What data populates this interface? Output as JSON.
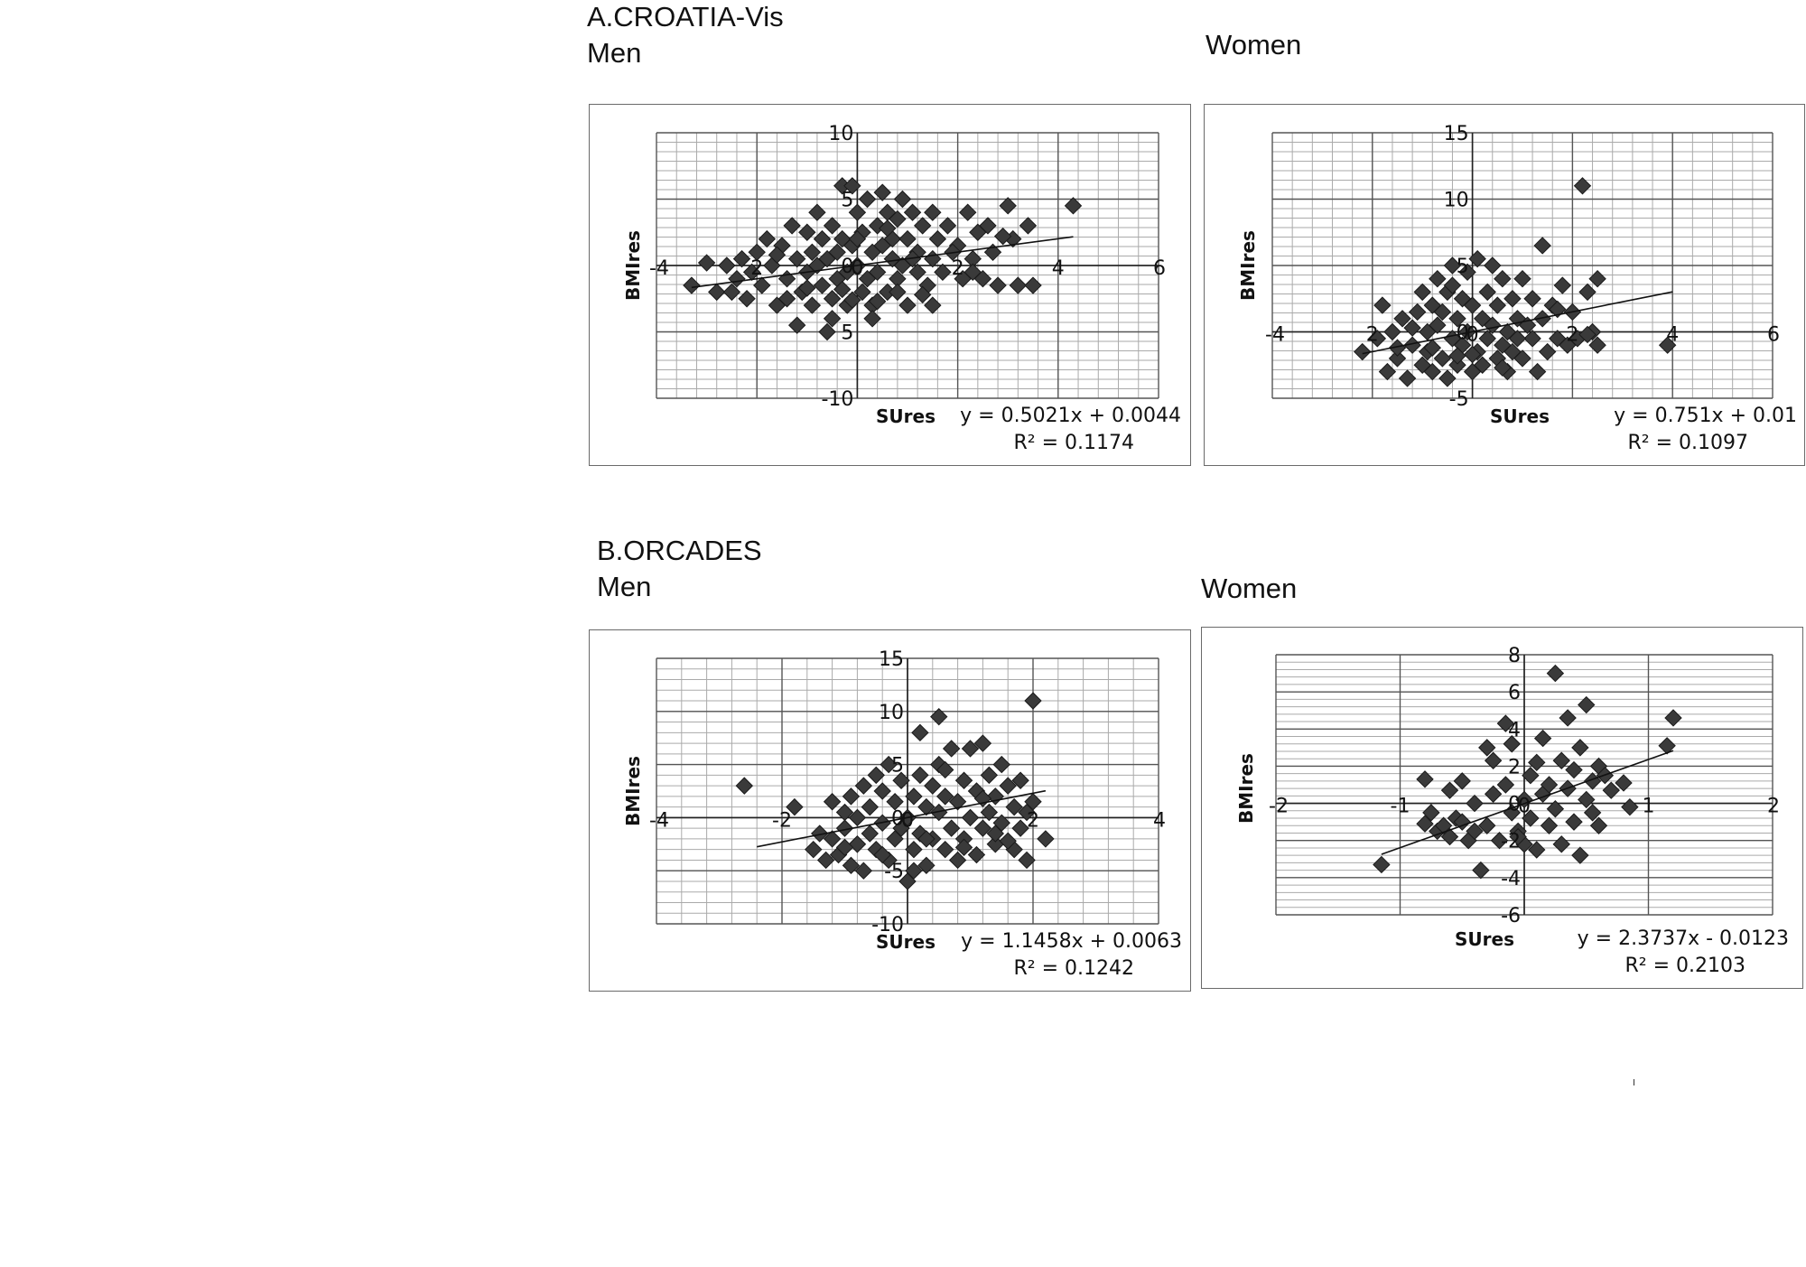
{
  "headings": {
    "a_title": "A.CROATIA-Vis",
    "a_men": "Men",
    "a_women": "Women",
    "b_title": "B.ORCADES",
    "b_men": "Men",
    "b_women": "Women"
  },
  "chart_data": [
    {
      "type": "scatter",
      "panel": "A.CROATIA-Vis Men",
      "xlabel": "SUres",
      "ylabel": "BMIres",
      "xlim": [
        -4,
        6
      ],
      "ylim": [
        -10,
        10
      ],
      "x_ticks": [
        "-4",
        "2",
        "0",
        "2",
        "4",
        "6"
      ],
      "y_ticks": [
        "10",
        "5",
        "0",
        "5",
        "-10"
      ],
      "equation": "y = 0.5021x + 0.0044",
      "r_squared": "R² = 0.1174",
      "trendline": {
        "slope": 0.5021,
        "intercept": 0.0044,
        "x_range": [
          -3.3,
          4.3
        ]
      },
      "points": [
        [
          -3.3,
          -1.5
        ],
        [
          -3.0,
          0.2
        ],
        [
          -2.8,
          -2
        ],
        [
          -2.6,
          0
        ],
        [
          -2.4,
          -1
        ],
        [
          -2.3,
          0.5
        ],
        [
          -2.2,
          -2.5
        ],
        [
          -2.1,
          -0.5
        ],
        [
          -2.0,
          1
        ],
        [
          -1.9,
          -1.5
        ],
        [
          -1.8,
          2
        ],
        [
          -1.7,
          0
        ],
        [
          -1.6,
          -3
        ],
        [
          -1.5,
          1.5
        ],
        [
          -1.4,
          -1
        ],
        [
          -1.3,
          3
        ],
        [
          -1.2,
          0.5
        ],
        [
          -1.2,
          -4.5
        ],
        [
          -1.1,
          -2
        ],
        [
          -1.0,
          2.5
        ],
        [
          -1.0,
          -0.5
        ],
        [
          -0.9,
          1
        ],
        [
          -0.9,
          -3
        ],
        [
          -0.8,
          4
        ],
        [
          -0.8,
          0
        ],
        [
          -0.7,
          -1.5
        ],
        [
          -0.7,
          2
        ],
        [
          -0.6,
          -5
        ],
        [
          -0.6,
          0.5
        ],
        [
          -0.5,
          -2.5
        ],
        [
          -0.5,
          3
        ],
        [
          -0.4,
          1
        ],
        [
          -0.4,
          -1
        ],
        [
          -0.3,
          6
        ],
        [
          -0.3,
          2
        ],
        [
          -0.2,
          -0.5
        ],
        [
          -0.2,
          -3
        ],
        [
          -0.1,
          6
        ],
        [
          -0.1,
          1.5
        ],
        [
          0.0,
          0
        ],
        [
          0.0,
          4
        ],
        [
          0.1,
          -2
        ],
        [
          0.1,
          2.5
        ],
        [
          0.2,
          -1
        ],
        [
          0.2,
          5
        ],
        [
          0.3,
          1
        ],
        [
          0.3,
          -3
        ],
        [
          0.4,
          3
        ],
        [
          0.4,
          -0.5
        ],
        [
          0.5,
          5.5
        ],
        [
          0.5,
          1.5
        ],
        [
          0.6,
          -2
        ],
        [
          0.6,
          4
        ],
        [
          0.7,
          0.5
        ],
        [
          0.7,
          2
        ],
        [
          0.8,
          -1
        ],
        [
          0.8,
          3.5
        ],
        [
          0.9,
          5
        ],
        [
          0.9,
          0
        ],
        [
          1.0,
          -3
        ],
        [
          1.0,
          2
        ],
        [
          1.1,
          4
        ],
        [
          1.2,
          -0.5
        ],
        [
          1.2,
          1
        ],
        [
          1.3,
          3
        ],
        [
          1.4,
          -1.5
        ],
        [
          1.5,
          4
        ],
        [
          1.5,
          0.5
        ],
        [
          1.6,
          2
        ],
        [
          1.7,
          -0.5
        ],
        [
          1.8,
          3
        ],
        [
          2.0,
          1.5
        ],
        [
          2.1,
          -1
        ],
        [
          2.2,
          4
        ],
        [
          2.3,
          0.5
        ],
        [
          2.4,
          2.5
        ],
        [
          2.5,
          -1
        ],
        [
          2.6,
          3
        ],
        [
          2.7,
          1
        ],
        [
          2.8,
          -1.5
        ],
        [
          3.0,
          4.5
        ],
        [
          3.1,
          2
        ],
        [
          3.2,
          -1.5
        ],
        [
          3.4,
          3
        ],
        [
          3.5,
          -1.5
        ],
        [
          4.3,
          4.5
        ],
        [
          -0.5,
          -4
        ],
        [
          0.3,
          -4
        ],
        [
          1.5,
          -3
        ],
        [
          -1.4,
          -2.5
        ],
        [
          0.8,
          -2
        ],
        [
          2.3,
          -0.5
        ],
        [
          -2.5,
          -2
        ],
        [
          1.9,
          1
        ],
        [
          0.0,
          2
        ],
        [
          -0.3,
          -1.8
        ],
        [
          1.1,
          0.5
        ],
        [
          0.6,
          2.8
        ],
        [
          -1.6,
          0.8
        ],
        [
          2.9,
          2.2
        ],
        [
          0.4,
          -2.7
        ],
        [
          1.3,
          -2.2
        ],
        [
          -0.1,
          -2.6
        ],
        [
          -1.0,
          -1.7
        ]
      ]
    },
    {
      "type": "scatter",
      "panel": "A.CROATIA-Vis Women",
      "xlabel": "SUres",
      "ylabel": "BMIres",
      "xlim": [
        -4,
        6
      ],
      "ylim": [
        -5,
        15
      ],
      "x_ticks": [
        "-4",
        "2",
        "0",
        "2",
        "4",
        "6"
      ],
      "y_ticks": [
        "15",
        "10",
        "5",
        "0",
        "-5"
      ],
      "equation": "y = 0.751x + 0.01",
      "r_squared": "R² = 0.1097",
      "trendline": {
        "slope": 0.751,
        "intercept": 0.01,
        "x_range": [
          -2.2,
          4
        ]
      },
      "points": [
        [
          -2.2,
          -1.5
        ],
        [
          -1.9,
          -0.5
        ],
        [
          -1.8,
          2
        ],
        [
          -1.7,
          -3
        ],
        [
          -1.6,
          0
        ],
        [
          -1.5,
          -2
        ],
        [
          -1.4,
          1
        ],
        [
          -1.3,
          -3.5
        ],
        [
          -1.2,
          -1
        ],
        [
          -1.1,
          1.5
        ],
        [
          -1.0,
          -2.5
        ],
        [
          -1.0,
          3
        ],
        [
          -0.9,
          0
        ],
        [
          -0.9,
          -1.5
        ],
        [
          -0.8,
          2
        ],
        [
          -0.8,
          -3
        ],
        [
          -0.7,
          4
        ],
        [
          -0.7,
          0.5
        ],
        [
          -0.6,
          -2
        ],
        [
          -0.6,
          1.5
        ],
        [
          -0.5,
          -3.5
        ],
        [
          -0.5,
          3
        ],
        [
          -0.4,
          -0.5
        ],
        [
          -0.4,
          5
        ],
        [
          -0.3,
          1
        ],
        [
          -0.3,
          -2.5
        ],
        [
          -0.2,
          2.5
        ],
        [
          -0.2,
          -1
        ],
        [
          -0.1,
          4.5
        ],
        [
          -0.1,
          0
        ],
        [
          0.0,
          -3
        ],
        [
          0.0,
          2
        ],
        [
          0.1,
          -1.5
        ],
        [
          0.1,
          5.5
        ],
        [
          0.2,
          1
        ],
        [
          0.2,
          -2.5
        ],
        [
          0.3,
          3
        ],
        [
          0.3,
          -0.5
        ],
        [
          0.4,
          5
        ],
        [
          0.4,
          0.5
        ],
        [
          0.5,
          -2
        ],
        [
          0.5,
          2
        ],
        [
          0.6,
          -1
        ],
        [
          0.6,
          4
        ],
        [
          0.7,
          0
        ],
        [
          0.7,
          -3
        ],
        [
          0.8,
          2.5
        ],
        [
          0.8,
          -1.5
        ],
        [
          0.9,
          1
        ],
        [
          1.0,
          4
        ],
        [
          1.0,
          -2
        ],
        [
          1.1,
          0.5
        ],
        [
          1.2,
          -0.5
        ],
        [
          1.2,
          2.5
        ],
        [
          1.3,
          -3
        ],
        [
          1.4,
          1
        ],
        [
          1.4,
          6.5
        ],
        [
          1.5,
          -1.5
        ],
        [
          1.6,
          2
        ],
        [
          1.7,
          -0.5
        ],
        [
          1.8,
          3.5
        ],
        [
          1.9,
          -1
        ],
        [
          2.0,
          1.5
        ],
        [
          2.1,
          -0.5
        ],
        [
          2.2,
          11
        ],
        [
          2.3,
          3
        ],
        [
          2.4,
          0
        ],
        [
          2.5,
          4
        ],
        [
          2.5,
          -1
        ],
        [
          3.9,
          -1
        ],
        [
          -1.5,
          -1.2
        ],
        [
          -0.8,
          -1.2
        ],
        [
          0.0,
          -1.7
        ],
        [
          0.9,
          -0.5
        ],
        [
          -0.3,
          -1.8
        ],
        [
          0.6,
          -2.7
        ],
        [
          -1.2,
          0.3
        ],
        [
          1.7,
          1.7
        ],
        [
          -0.4,
          3.5
        ],
        [
          2.3,
          -0.2
        ]
      ]
    },
    {
      "type": "scatter",
      "panel": "B.ORCADES Men",
      "xlabel": "SUres",
      "ylabel": "BMIres",
      "xlim": [
        -4,
        4
      ],
      "ylim": [
        -10,
        15
      ],
      "x_ticks": [
        "-4",
        "-2",
        "0",
        "2",
        "4"
      ],
      "y_ticks": [
        "15",
        "10",
        "5",
        "0",
        "-5",
        "-10"
      ],
      "equation": "y = 1.1458x + 0.0063",
      "r_squared": "R² = 0.1242",
      "trendline": {
        "slope": 1.1458,
        "intercept": 0.0063,
        "x_range": [
          -2.4,
          2.2
        ]
      },
      "points": [
        [
          -2.6,
          3
        ],
        [
          -1.8,
          1
        ],
        [
          -1.5,
          -3
        ],
        [
          -1.4,
          -1.5
        ],
        [
          -1.3,
          -4
        ],
        [
          -1.2,
          -2
        ],
        [
          -1.2,
          1.5
        ],
        [
          -1.1,
          -3.5
        ],
        [
          -1.0,
          -1
        ],
        [
          -1.0,
          0.5
        ],
        [
          -0.9,
          -4.5
        ],
        [
          -0.9,
          2
        ],
        [
          -0.8,
          -2.5
        ],
        [
          -0.8,
          0
        ],
        [
          -0.7,
          -5
        ],
        [
          -0.7,
          3
        ],
        [
          -0.6,
          -1.5
        ],
        [
          -0.6,
          1
        ],
        [
          -0.5,
          -3
        ],
        [
          -0.5,
          4
        ],
        [
          -0.4,
          -0.5
        ],
        [
          -0.4,
          2.5
        ],
        [
          -0.3,
          -4
        ],
        [
          -0.3,
          5
        ],
        [
          -0.2,
          -2
        ],
        [
          -0.2,
          1.5
        ],
        [
          -0.1,
          -1
        ],
        [
          -0.1,
          3.5
        ],
        [
          0.0,
          -6
        ],
        [
          0.0,
          0
        ],
        [
          0.1,
          2
        ],
        [
          0.1,
          -3
        ],
        [
          0.2,
          4
        ],
        [
          0.2,
          -1.5
        ],
        [
          0.2,
          8
        ],
        [
          0.3,
          1
        ],
        [
          0.3,
          -4.5
        ],
        [
          0.4,
          3
        ],
        [
          0.4,
          -2
        ],
        [
          0.5,
          5
        ],
        [
          0.5,
          0.5
        ],
        [
          0.6,
          -3
        ],
        [
          0.6,
          2
        ],
        [
          0.7,
          6.5
        ],
        [
          0.7,
          -1
        ],
        [
          0.8,
          1.5
        ],
        [
          0.8,
          -4
        ],
        [
          0.9,
          3.5
        ],
        [
          0.9,
          -2
        ],
        [
          1.0,
          6.5
        ],
        [
          1.0,
          0
        ],
        [
          1.1,
          -3.5
        ],
        [
          1.1,
          2.5
        ],
        [
          1.2,
          7
        ],
        [
          1.2,
          -1
        ],
        [
          1.3,
          4
        ],
        [
          1.3,
          0.5
        ],
        [
          1.4,
          -2.5
        ],
        [
          1.4,
          2
        ],
        [
          1.5,
          5
        ],
        [
          1.5,
          -0.5
        ],
        [
          1.6,
          3
        ],
        [
          1.7,
          -3
        ],
        [
          1.7,
          1
        ],
        [
          1.8,
          -1
        ],
        [
          1.8,
          3.5
        ],
        [
          1.9,
          -4
        ],
        [
          1.9,
          0.5
        ],
        [
          2.0,
          1.5
        ],
        [
          2.0,
          11
        ],
        [
          2.2,
          -2
        ],
        [
          0.5,
          9.5
        ],
        [
          0.1,
          -5
        ],
        [
          -0.4,
          -3.5
        ],
        [
          0.9,
          -2.8
        ],
        [
          1.4,
          -1.5
        ],
        [
          -0.8,
          -2.5
        ],
        [
          0.3,
          -2
        ],
        [
          1.6,
          -2.2
        ],
        [
          -1.0,
          -2.8
        ],
        [
          0.6,
          4.5
        ],
        [
          1.2,
          1.8
        ]
      ]
    },
    {
      "type": "scatter",
      "panel": "B.ORCADES Women",
      "xlabel": "SUres",
      "ylabel": "BMIres",
      "xlim": [
        -2,
        2
      ],
      "ylim": [
        -6,
        8
      ],
      "x_ticks": [
        "-2",
        "-1",
        "0",
        "1",
        "2"
      ],
      "y_ticks": [
        "8",
        "6",
        "4",
        "2",
        "0",
        "-2",
        "-4",
        "-6"
      ],
      "equation": "y = 2.3737x - 0.0123",
      "r_squared": "R² = 0.2103",
      "trendline": {
        "slope": 2.3737,
        "intercept": -0.0123,
        "x_range": [
          -1.15,
          1.2
        ]
      },
      "points": [
        [
          -1.15,
          -3.3
        ],
        [
          -0.8,
          1.3
        ],
        [
          -0.75,
          -0.5
        ],
        [
          -0.7,
          -1.5
        ],
        [
          -0.6,
          0.7
        ],
        [
          -0.6,
          -1.8
        ],
        [
          -0.55,
          -0.8
        ],
        [
          -0.5,
          1.2
        ],
        [
          -0.5,
          -1
        ],
        [
          -0.45,
          -2
        ],
        [
          -0.4,
          0
        ],
        [
          -0.4,
          -1.5
        ],
        [
          -0.35,
          -3.6
        ],
        [
          -0.3,
          -1.2
        ],
        [
          -0.3,
          3
        ],
        [
          -0.25,
          0.5
        ],
        [
          -0.25,
          2.3
        ],
        [
          -0.2,
          -2
        ],
        [
          -0.15,
          4.3
        ],
        [
          -0.15,
          1
        ],
        [
          -0.1,
          -0.5
        ],
        [
          -0.1,
          3.2
        ],
        [
          -0.05,
          -1.5
        ],
        [
          0.0,
          0.2
        ],
        [
          0.0,
          -2.2
        ],
        [
          0.05,
          1.5
        ],
        [
          0.05,
          -0.8
        ],
        [
          0.1,
          2.2
        ],
        [
          0.1,
          -2.5
        ],
        [
          0.15,
          0.5
        ],
        [
          0.15,
          3.5
        ],
        [
          0.2,
          -1.2
        ],
        [
          0.2,
          1
        ],
        [
          0.25,
          7
        ],
        [
          0.25,
          -0.3
        ],
        [
          0.3,
          2.3
        ],
        [
          0.3,
          -2.2
        ],
        [
          0.35,
          4.6
        ],
        [
          0.35,
          0.8
        ],
        [
          0.4,
          -1
        ],
        [
          0.4,
          1.8
        ],
        [
          0.45,
          -2.8
        ],
        [
          0.45,
          3
        ],
        [
          0.5,
          0.2
        ],
        [
          0.5,
          5.3
        ],
        [
          0.55,
          1.2
        ],
        [
          0.55,
          -0.5
        ],
        [
          0.6,
          2
        ],
        [
          0.6,
          -1.2
        ],
        [
          0.65,
          1.5
        ],
        [
          0.8,
          1.1
        ],
        [
          0.85,
          -0.2
        ],
        [
          1.15,
          3.1
        ],
        [
          1.2,
          4.6
        ],
        [
          -0.05,
          -1.8
        ],
        [
          -0.8,
          -1.1
        ],
        [
          0.7,
          0.7
        ],
        [
          -0.65,
          -1.2
        ]
      ]
    }
  ]
}
